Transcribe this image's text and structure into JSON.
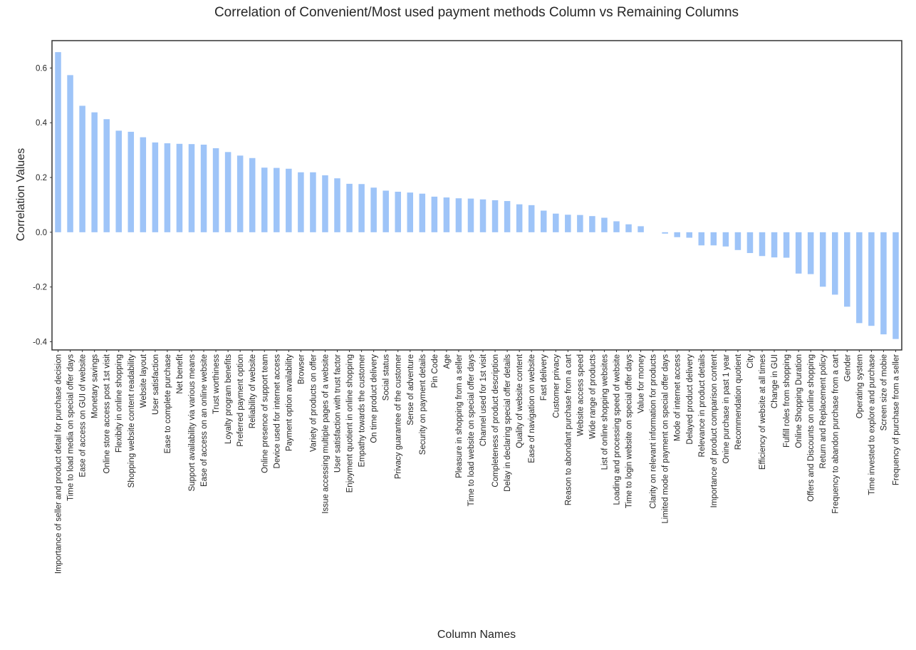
{
  "chart_data": {
    "type": "bar",
    "title": "Correlation of Convenient/Most used payment methods Column vs Remaining Columns",
    "xlabel": "Column Names",
    "ylabel": "Correlation Values",
    "ylim": [
      -0.43,
      0.7
    ],
    "yticks": [
      -0.4,
      -0.2,
      0.0,
      0.2,
      0.4,
      0.6
    ],
    "ytick_labels": [
      "-0.4",
      "-0.2",
      "0.0",
      "0.2",
      "0.4",
      "0.6"
    ],
    "bar_color": "#9ec4f8",
    "grid": false,
    "categories": [
      "Importance of seller and product detail for purchase decision",
      "Time to load media on special offer days",
      "Ease of access on GUI of website",
      "Monetary savings",
      "Online store access post 1st visit",
      "Flexibity in online shopping",
      "Shopping website content readability",
      "Website layout",
      "User satisfaction",
      "Ease to complete purchase",
      "Net benefit",
      "Support availability via various means",
      "Ease of access on an online website",
      "Trust worthiness",
      "Loyalty program benefits",
      "Preferred payment option",
      "Reliability of website",
      "Online presence of support team",
      "Device used for internet access",
      "Payment option availability",
      "Browser",
      "Variety of products on offer",
      "Issue accessing multiple pages of a website",
      "User satisfaction with trust factor",
      "Enjoyment quotient in online shopping",
      "Empathy towards the customer",
      "On time product delivery",
      "Social status",
      "Privacy guarantee of the customer",
      "Sense of adventure",
      "Security on payment details",
      "Pin Code",
      "Age",
      "Pleasure in shopping from a seller",
      "Time to load website on special offer days",
      "Channel used for 1st visit",
      "Completeness of product description",
      "Delay in declaring special offer details",
      "Quality of website content",
      "Ease of navigation on website",
      "Fast delivery",
      "Customer privacy",
      "Reason to abondant purchase from a cart",
      "Website access speed",
      "Wide range of products",
      "List of online shopping websites",
      "Loading and processing speed of website",
      "Time to login website on special offer days",
      "Value for money",
      "Clarity on relevant information for products",
      "Limited mode of payment on special offer days",
      "Mode of internet access",
      "Delayed product delivery",
      "Relevance in product details",
      "Importance of product comparison content",
      "Onine purchase in past 1 year",
      "Recommendation quotient",
      "City",
      "Efficiency of website at all times",
      "Change in GUI",
      "Fulfill roles from shopping",
      "Online Shopping Duration",
      "Offers and Discounts on online shopping",
      "Return and Replacement policy",
      "Frequency to abandon purchase from a cart",
      "Gender",
      "Operating system",
      "Time invested to explore and purchase",
      "Screen size of mobie",
      "Frequency of purchase from a seller"
    ],
    "values": [
      0.658,
      0.574,
      0.462,
      0.438,
      0.413,
      0.371,
      0.367,
      0.347,
      0.328,
      0.325,
      0.323,
      0.322,
      0.32,
      0.307,
      0.293,
      0.28,
      0.271,
      0.236,
      0.235,
      0.232,
      0.219,
      0.219,
      0.208,
      0.197,
      0.177,
      0.176,
      0.163,
      0.152,
      0.148,
      0.145,
      0.141,
      0.13,
      0.127,
      0.124,
      0.123,
      0.12,
      0.117,
      0.114,
      0.102,
      0.099,
      0.079,
      0.068,
      0.064,
      0.063,
      0.059,
      0.053,
      0.04,
      0.029,
      0.022,
      0.0,
      -0.005,
      -0.018,
      -0.02,
      -0.048,
      -0.048,
      -0.052,
      -0.065,
      -0.076,
      -0.087,
      -0.092,
      -0.093,
      -0.151,
      -0.153,
      -0.199,
      -0.228,
      -0.272,
      -0.332,
      -0.342,
      -0.373,
      -0.39
    ]
  }
}
